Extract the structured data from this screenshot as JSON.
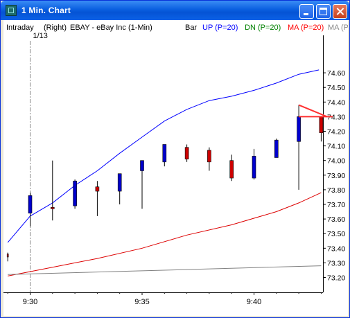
{
  "window": {
    "title": "1 Min. Chart",
    "buttons": [
      "minimize",
      "maximize",
      "close"
    ]
  },
  "chart_header": {
    "left_labels": [
      "Intraday",
      "(Right)",
      "EBAY - eBay Inc",
      "(1-Min)"
    ],
    "indicator_labels": [
      {
        "text": "Bar",
        "color": "#000000"
      },
      {
        "text": "UP (P=20)",
        "color": "#0000ff"
      },
      {
        "text": "DN (P=20)",
        "color": "#008000"
      },
      {
        "text": "MA (P=20)",
        "color": "#ff0000"
      },
      {
        "text": "MA (P",
        "color": "#888888"
      }
    ]
  },
  "date_marker": "1/13",
  "chart_data": {
    "type": "candlestick",
    "title": "EBAY - eBay Inc",
    "interval": "1-Min",
    "ylim": [
      73.15,
      74.65
    ],
    "y_ticks": [
      73.2,
      73.3,
      73.4,
      73.5,
      73.6,
      73.7,
      73.8,
      73.9,
      74.0,
      74.1,
      74.2,
      74.3,
      74.4,
      74.5,
      74.6
    ],
    "x_tick_labels": [
      "9:30",
      "9:35",
      "9:40"
    ],
    "x_tick_minutes": [
      0,
      5,
      10
    ],
    "grid": false,
    "colors": {
      "up": "#0000cc",
      "down": "#cc0000",
      "upper_band": "#0000ff",
      "ma": "#dd0000",
      "lower_band": "#808080",
      "guide": "#ff3030"
    },
    "candles": [
      {
        "minute": -1,
        "open": 73.36,
        "high": 73.37,
        "low": 73.31,
        "close": 73.34
      },
      {
        "minute": 0,
        "open": 73.64,
        "high": 73.78,
        "low": 73.55,
        "close": 73.76
      },
      {
        "minute": 1,
        "open": 73.68,
        "high": 74.0,
        "low": 73.59,
        "close": 73.67
      },
      {
        "minute": 2,
        "open": 73.69,
        "high": 73.87,
        "low": 73.67,
        "close": 73.86
      },
      {
        "minute": 3,
        "open": 73.82,
        "high": 73.86,
        "low": 73.62,
        "close": 73.79
      },
      {
        "minute": 4,
        "open": 73.79,
        "high": 73.91,
        "low": 73.7,
        "close": 73.91
      },
      {
        "minute": 5,
        "open": 73.93,
        "high": 74.0,
        "low": 73.67,
        "close": 74.0
      },
      {
        "minute": 6,
        "open": 73.99,
        "high": 74.11,
        "low": 73.96,
        "close": 74.11
      },
      {
        "minute": 7,
        "open": 74.09,
        "high": 74.11,
        "low": 73.99,
        "close": 74.01
      },
      {
        "minute": 8,
        "open": 74.07,
        "high": 74.09,
        "low": 73.93,
        "close": 73.99
      },
      {
        "minute": 9,
        "open": 74.0,
        "high": 74.04,
        "low": 73.86,
        "close": 73.88
      },
      {
        "minute": 10,
        "open": 73.88,
        "high": 74.08,
        "low": 73.87,
        "close": 74.03
      },
      {
        "minute": 11,
        "open": 74.02,
        "high": 74.15,
        "low": 74.02,
        "close": 74.14
      },
      {
        "minute": 12,
        "open": 74.13,
        "high": 74.38,
        "low": 73.8,
        "close": 74.3
      },
      {
        "minute": 13,
        "open": 74.3,
        "high": 74.3,
        "low": 74.13,
        "close": 74.19
      }
    ],
    "series": [
      {
        "name": "UP (P=20)",
        "x": [
          -1,
          0,
          1,
          2,
          3,
          4,
          5,
          6,
          7,
          8,
          9,
          10,
          11,
          12,
          12.9
        ],
        "values": [
          73.44,
          73.62,
          73.71,
          73.83,
          73.93,
          74.05,
          74.16,
          74.27,
          74.35,
          74.41,
          74.44,
          74.48,
          74.53,
          74.59,
          74.62
        ]
      },
      {
        "name": "MA (P=20)",
        "x": [
          -1,
          1,
          3,
          5,
          7,
          9,
          11,
          12,
          13
        ],
        "values": [
          73.21,
          73.27,
          73.33,
          73.4,
          73.49,
          73.56,
          73.65,
          73.71,
          73.78
        ]
      },
      {
        "name": "DN (P=20)",
        "x": [
          -1,
          13
        ],
        "values": [
          73.22,
          73.28
        ]
      }
    ],
    "current_price": 74.3,
    "date_divider_minute": 0
  }
}
